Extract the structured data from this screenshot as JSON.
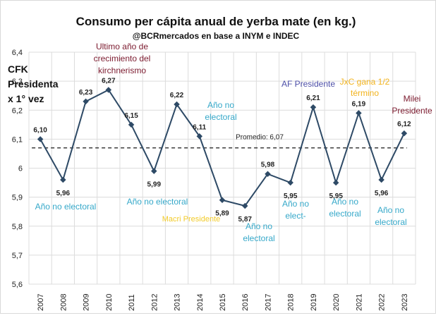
{
  "chart_data": {
    "type": "line",
    "title": "Consumo per cápita anual de yerba mate (en kg.)",
    "subtitle": "@BCRmercados en base a INYM e INDEC",
    "x": [
      "2007",
      "2008",
      "2009",
      "2010",
      "2011",
      "2012",
      "2013",
      "2014",
      "2015",
      "2016",
      "2017",
      "2018",
      "2019",
      "2020",
      "2021",
      "2022",
      "2023"
    ],
    "y_ticks": [
      "5,6",
      "5,7",
      "5,8",
      "5,9",
      "6",
      "6,1",
      "6,2",
      "6,3",
      "6,4"
    ],
    "ylim": [
      5.6,
      6.4
    ],
    "grid": true,
    "series": [
      {
        "values": [
          6.1,
          5.96,
          6.23,
          6.27,
          6.15,
          5.99,
          6.22,
          6.11,
          5.89,
          5.87,
          5.98,
          5.95,
          6.21,
          5.95,
          6.19,
          5.96,
          6.12
        ],
        "labels": [
          "6,10",
          "5,96",
          "6,23",
          "6,27",
          "6,15",
          "5,99",
          "6,22",
          "6,11",
          "5,89",
          "5,87",
          "5,98",
          "5,95",
          "6,21",
          "5,95",
          "6,19",
          "5,96",
          "6,12"
        ],
        "color": "#2e4a66"
      }
    ],
    "average": {
      "value": 6.07,
      "label": "Promedio: 6,07"
    },
    "annotations": [
      {
        "lines": [
          "CFK",
          "Presidenta",
          "x 1° vez"
        ],
        "color": "#111111",
        "bold": true
      },
      {
        "lines": [
          "Ultimo año de",
          "crecimiento del",
          "kirchnerismo"
        ],
        "color": "#7b1a2e"
      },
      {
        "lines": [
          "Año no electoral"
        ],
        "color": "#35a8c9"
      },
      {
        "lines": [
          "Año no electoral"
        ],
        "color": "#35a8c9"
      },
      {
        "lines": [
          "Año no",
          "electoral"
        ],
        "color": "#35a8c9"
      },
      {
        "lines": [
          "Macri Presidente"
        ],
        "color": "#f2cb2a"
      },
      {
        "lines": [
          "Año no",
          "electoral"
        ],
        "color": "#35a8c9"
      },
      {
        "lines": [
          "Año no",
          "elect-"
        ],
        "color": "#35a8c9"
      },
      {
        "lines": [
          "AF Presidente"
        ],
        "color": "#4d4fa8"
      },
      {
        "lines": [
          "Año no",
          "electoral"
        ],
        "color": "#35a8c9"
      },
      {
        "lines": [
          "JxC gana 1/2",
          "término"
        ],
        "color": "#f2b31d"
      },
      {
        "lines": [
          "Año no",
          "electoral"
        ],
        "color": "#35a8c9"
      },
      {
        "lines": [
          "Milei",
          "Presidente"
        ],
        "color": "#7b1a2e"
      }
    ]
  }
}
